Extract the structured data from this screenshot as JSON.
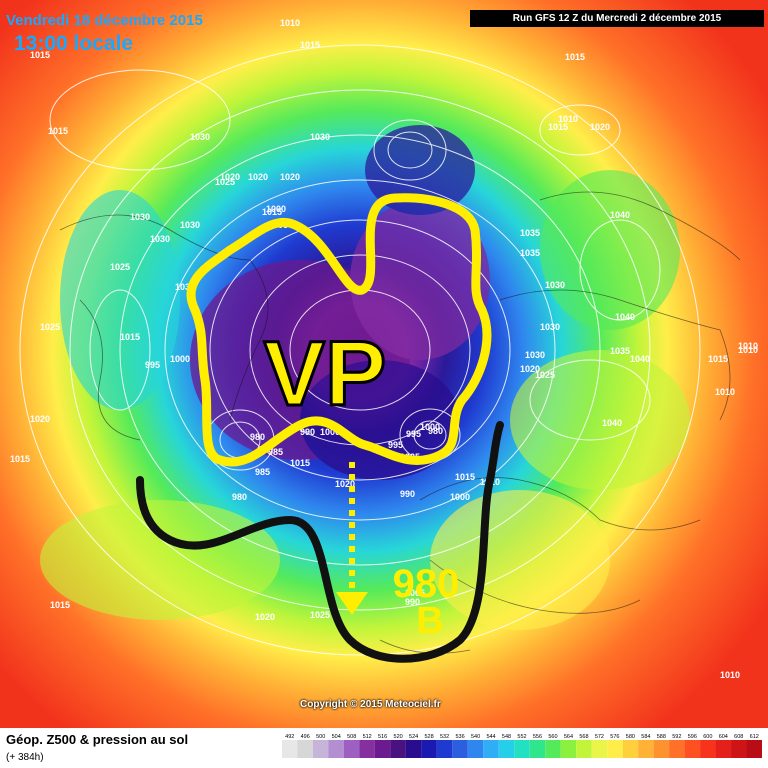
{
  "header": {
    "date": "Vendredi 18 décembre 2015",
    "time": "13:00 locale",
    "run": "Run GFS 12 Z du Mercredi 2 décembre 2015"
  },
  "footer": {
    "title": "Géop. Z500 & pression au sol",
    "subtitle": "(+ 384h)",
    "copyright": "Copyright © 2015 Meteociel.fr"
  },
  "annotations": {
    "vp": "VP",
    "low_value": "980",
    "low_letter": "B"
  },
  "isobar_labels": [
    "1015",
    "1010",
    "1015",
    "1015",
    "1015",
    "1015",
    "1030",
    "1020",
    "1025",
    "1025",
    "1030",
    "1030",
    "1030",
    "1030",
    "1025",
    "995",
    "1000",
    "1020",
    "1015",
    "1020",
    "1000",
    "1005",
    "1035",
    "1035",
    "1040",
    "1040",
    "1040",
    "1040",
    "1030",
    "1030",
    "1030",
    "1030",
    "1035",
    "1025",
    "1020",
    "1020",
    "1015",
    "1015",
    "1010",
    "1010",
    "1015",
    "1010",
    "1010",
    "1010",
    "1015",
    "980",
    "985",
    "980",
    "1000",
    "1015",
    "1020",
    "1020",
    "1025",
    "990",
    "995",
    "1000",
    "1005",
    "990",
    "995",
    "980",
    "985",
    "1000",
    "990",
    "1010",
    "1015",
    "1020",
    "1025"
  ],
  "legend_scale": [
    "492",
    "496",
    "500",
    "504",
    "508",
    "512",
    "516",
    "520",
    "524",
    "528",
    "532",
    "536",
    "540",
    "544",
    "548",
    "552",
    "556",
    "560",
    "564",
    "568",
    "572",
    "576",
    "580",
    "584",
    "588",
    "592",
    "596",
    "600",
    "604",
    "608",
    "612"
  ],
  "legend_colors": [
    "#e7e7e7",
    "#d7d7d7",
    "#c7b4d9",
    "#b38ed0",
    "#9d5fc0",
    "#86309f",
    "#6b1a8f",
    "#4a1180",
    "#2a0d8f",
    "#1a1ab3",
    "#1f3ad0",
    "#2b5fe0",
    "#2f86ee",
    "#30aef5",
    "#26cfe9",
    "#23e0c2",
    "#2fe68d",
    "#55ea5a",
    "#8cf03e",
    "#c2f53a",
    "#eaf54a",
    "#ffee4a",
    "#ffd03e",
    "#ffb236",
    "#ff9230",
    "#ff7028",
    "#ff5022",
    "#f7331c",
    "#e51f1a",
    "#cf1416",
    "#b80d14"
  ]
}
